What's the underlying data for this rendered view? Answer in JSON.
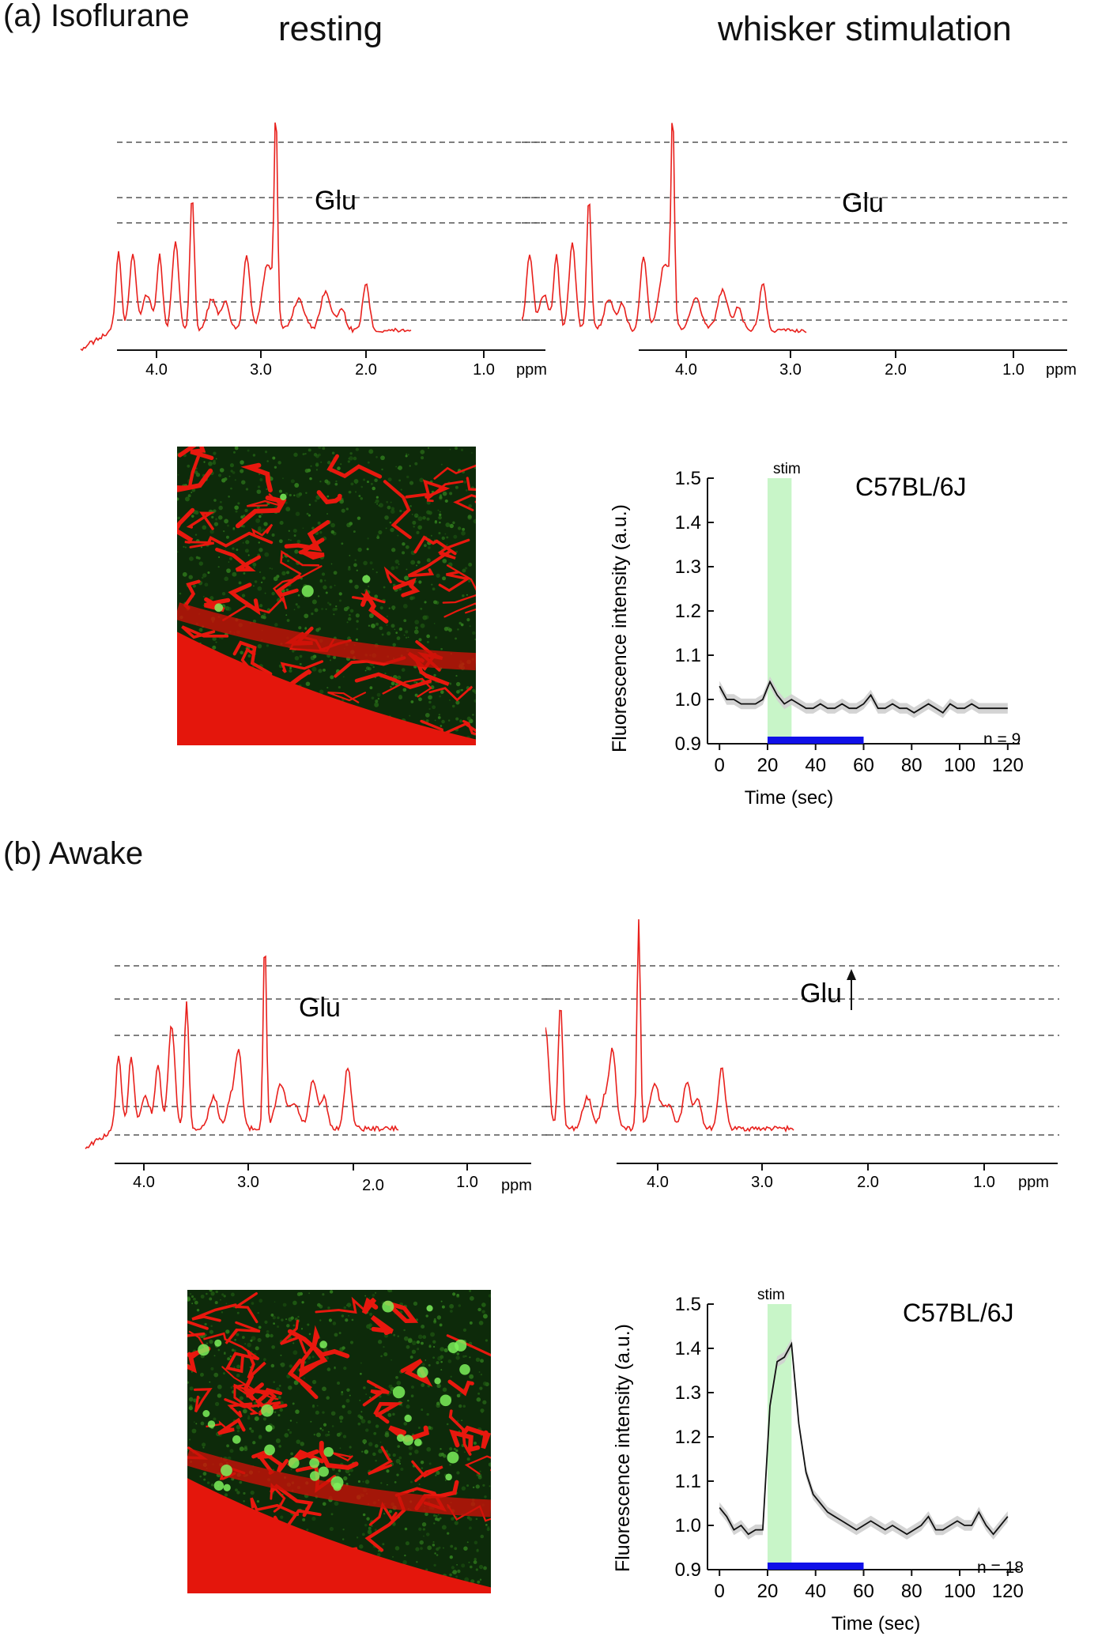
{
  "panel_a": {
    "label": "(a) Isoflurane",
    "title_left": "resting",
    "title_right": "whisker stimulation",
    "glu_left": "Glu",
    "glu_right": "Glu",
    "ppm_label": "ppm",
    "ppm_ticks": [
      "4.0",
      "3.0",
      "2.0",
      "1.0"
    ],
    "timecourse": {
      "strain": "C57BL/6J",
      "stim_label": "stim",
      "n_label": "n = 9",
      "ylabel": "Fluorescence intensity (a.u.)",
      "xlabel": "Time (sec)"
    }
  },
  "panel_b": {
    "label": "(b)  Awake",
    "glu_left": "Glu",
    "glu_right": "Glu",
    "ppm_label": "ppm",
    "ppm_ticks": [
      "4.0",
      "3.0",
      "2.0",
      "1.0"
    ],
    "timecourse": {
      "strain": "C57BL/6J",
      "stim_label": "stim",
      "n_label": "n = 18",
      "ylabel": "Fluorescence intensity (a.u.)",
      "xlabel": "Time (sec)"
    }
  },
  "colors": {
    "spectrum": "#e8201c",
    "stim_band": "#c8f5c8",
    "bar": "#1010e8",
    "trace": "#111111",
    "sem": "#cfcfcf"
  },
  "chart_data": [
    {
      "type": "line",
      "name": "(a) Isoflurane fluorescence time course",
      "x": [
        0,
        3,
        6,
        9,
        12,
        15,
        18,
        21,
        24,
        27,
        30,
        33,
        36,
        39,
        42,
        45,
        48,
        51,
        54,
        57,
        60,
        63,
        66,
        69,
        72,
        75,
        78,
        81,
        84,
        87,
        90,
        93,
        96,
        99,
        102,
        105,
        108,
        111,
        114,
        117,
        120
      ],
      "series": [
        {
          "values": [
            1.03,
            1.0,
            1.0,
            0.99,
            0.99,
            0.99,
            1.0,
            1.04,
            1.01,
            0.99,
            1.0,
            0.99,
            0.98,
            0.98,
            0.99,
            0.98,
            0.98,
            0.99,
            0.98,
            0.98,
            0.99,
            1.01,
            0.98,
            0.98,
            0.99,
            0.98,
            0.98,
            0.97,
            0.98,
            0.99,
            0.98,
            0.97,
            0.99,
            0.98,
            0.98,
            0.99,
            0.98,
            0.98,
            0.98,
            0.98,
            0.98
          ]
        }
      ],
      "stim_window": [
        20,
        30
      ],
      "bar_window": [
        20,
        60
      ],
      "xticks": [
        0,
        20,
        40,
        60,
        80,
        100,
        120
      ],
      "yticks": [
        0.9,
        1.0,
        1.1,
        1.2,
        1.3,
        1.4,
        1.5
      ],
      "xlim": [
        -5,
        125
      ],
      "ylim": [
        0.9,
        1.5
      ]
    },
    {
      "type": "line",
      "name": "(b) Awake fluorescence time course",
      "x": [
        0,
        3,
        6,
        9,
        12,
        15,
        18,
        21,
        24,
        27,
        30,
        33,
        36,
        39,
        42,
        45,
        48,
        51,
        54,
        57,
        60,
        63,
        66,
        69,
        72,
        75,
        78,
        81,
        84,
        87,
        90,
        93,
        96,
        99,
        102,
        105,
        108,
        111,
        114,
        117,
        120
      ],
      "series": [
        {
          "values": [
            1.04,
            1.02,
            0.99,
            1.0,
            0.98,
            0.99,
            0.99,
            1.27,
            1.37,
            1.38,
            1.41,
            1.23,
            1.12,
            1.07,
            1.05,
            1.03,
            1.02,
            1.01,
            1.0,
            0.99,
            1.0,
            1.01,
            1.0,
            0.99,
            1.0,
            0.99,
            0.98,
            0.99,
            1.0,
            1.02,
            0.99,
            0.99,
            1.0,
            1.01,
            1.0,
            1.0,
            1.03,
            1.0,
            0.98,
            1.0,
            1.02
          ]
        }
      ],
      "stim_window": [
        20,
        30
      ],
      "bar_window": [
        20,
        60
      ],
      "xticks": [
        0,
        20,
        40,
        60,
        80,
        100,
        120
      ],
      "yticks": [
        0.9,
        1.0,
        1.1,
        1.2,
        1.3,
        1.4,
        1.5
      ],
      "xlim": [
        -5,
        125
      ],
      "ylim": [
        0.9,
        1.5
      ]
    }
  ]
}
